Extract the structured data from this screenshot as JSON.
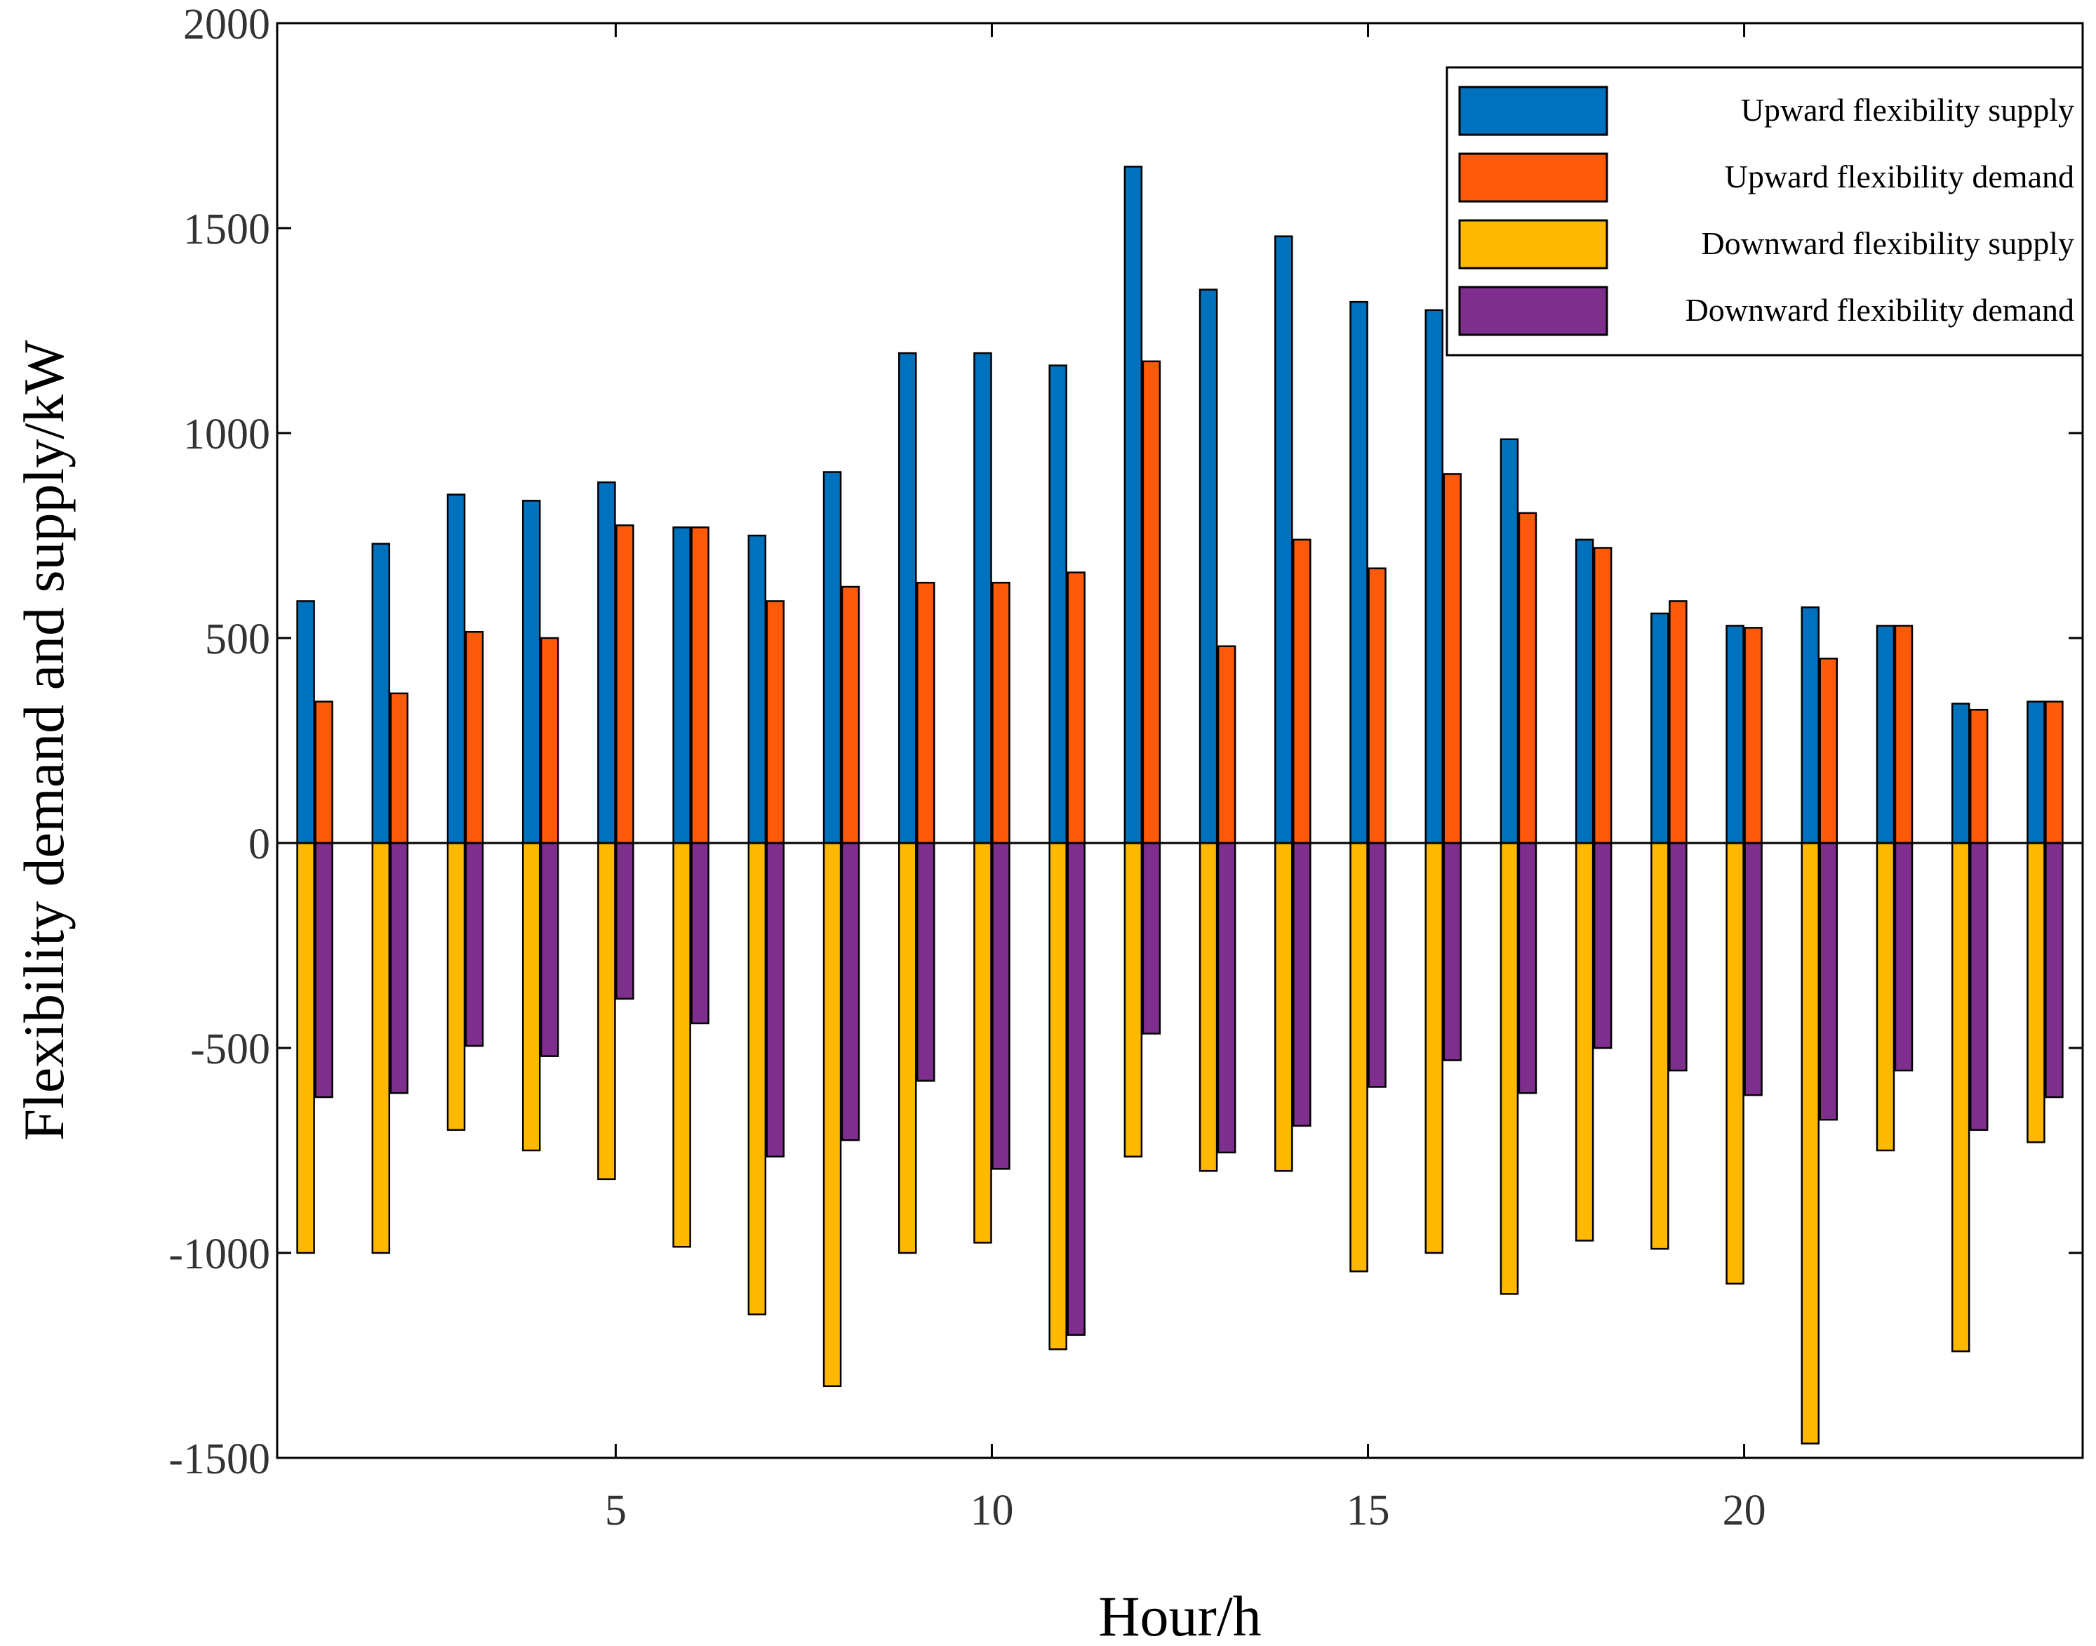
{
  "chart_data": {
    "type": "bar",
    "title": "",
    "xlabel": "Hour/h",
    "ylabel": "Flexibility demand and supply/kW",
    "xlim": [
      0.5,
      24.5
    ],
    "ylim": [
      -1500,
      2000
    ],
    "xticks": [
      5,
      10,
      15,
      20
    ],
    "yticks": [
      -1500,
      -1000,
      -500,
      0,
      500,
      1000,
      1500,
      2000
    ],
    "grid": false,
    "legend_position": "top-right",
    "categories": [
      1,
      2,
      3,
      4,
      5,
      6,
      7,
      8,
      9,
      10,
      11,
      12,
      13,
      14,
      15,
      16,
      17,
      18,
      19,
      20,
      21,
      22,
      23,
      24
    ],
    "series": [
      {
        "name": "Upward flexibility supply",
        "color": "#0072BD",
        "values": [
          590,
          730,
          850,
          835,
          880,
          770,
          750,
          905,
          1195,
          1195,
          1165,
          1650,
          1350,
          1480,
          1320,
          1300,
          985,
          740,
          560,
          530,
          575,
          530,
          340,
          345
        ]
      },
      {
        "name": "Upward flexibility demand",
        "color": "#FF5A0A",
        "values": [
          345,
          365,
          515,
          500,
          775,
          770,
          590,
          625,
          635,
          635,
          660,
          1175,
          480,
          740,
          670,
          900,
          805,
          720,
          590,
          525,
          450,
          530,
          325,
          345
        ]
      },
      {
        "name": "Downward flexibility supply",
        "color": "#FFB800",
        "values": [
          -1000,
          -1000,
          -700,
          -750,
          -820,
          -985,
          -1150,
          -1325,
          -1000,
          -975,
          -1235,
          -765,
          -800,
          -800,
          -1045,
          -1000,
          -1100,
          -970,
          -990,
          -1075,
          -1465,
          -750,
          -1240,
          -730
        ]
      },
      {
        "name": "Downward flexibility demand",
        "color": "#7E2F8E",
        "values": [
          -620,
          -610,
          -495,
          -520,
          -380,
          -440,
          -765,
          -725,
          -580,
          -795,
          -1200,
          -465,
          -755,
          -690,
          -595,
          -530,
          -610,
          -500,
          -555,
          -615,
          -675,
          -555,
          -700,
          -620
        ]
      }
    ]
  }
}
